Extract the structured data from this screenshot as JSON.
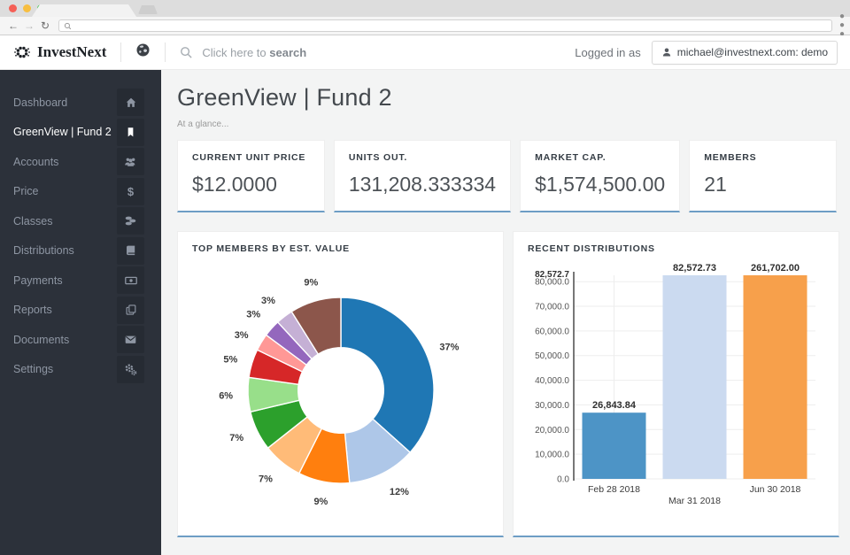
{
  "browser": {
    "traffic_lights": [
      "#f55f56",
      "#f7be40",
      "#3bc24a"
    ],
    "url_text": ""
  },
  "header": {
    "brand": "InvestNext",
    "search": {
      "prefix": "Click here to ",
      "bold": "search"
    },
    "logged_in_label": "Logged in as",
    "user": "michael@investnext.com: demo"
  },
  "sidebar": {
    "items": [
      {
        "label": "Dashboard",
        "icon": "home-icon",
        "active": false
      },
      {
        "label": "GreenView | Fund 2",
        "icon": "bookmark-icon",
        "active": true
      },
      {
        "label": "Accounts",
        "icon": "users-icon",
        "active": false
      },
      {
        "label": "Price",
        "icon": "dollar-icon",
        "active": false
      },
      {
        "label": "Classes",
        "icon": "coins-icon",
        "active": false
      },
      {
        "label": "Distributions",
        "icon": "book-icon",
        "active": false
      },
      {
        "label": "Payments",
        "icon": "banknote-icon",
        "active": false
      },
      {
        "label": "Reports",
        "icon": "copy-icon",
        "active": false
      },
      {
        "label": "Documents",
        "icon": "envelope-icon",
        "active": false
      },
      {
        "label": "Settings",
        "icon": "gears-icon",
        "active": false
      }
    ]
  },
  "page": {
    "title": "GreenView | Fund 2",
    "subtitle": "At a glance..."
  },
  "stats": {
    "cards": [
      {
        "label": "CURRENT UNIT PRICE",
        "value": "$12.0000"
      },
      {
        "label": "UNITS OUT.",
        "value": "131,208.333334"
      },
      {
        "label": "MARKET CAP.",
        "value": "$1,574,500.00"
      },
      {
        "label": "MEMBERS",
        "value": "21"
      }
    ]
  },
  "colors": {
    "accent": "#6d9dc5",
    "sidebar_bg": "#2c313a",
    "active_text": "#ffffff"
  },
  "chart_data": [
    {
      "type": "pie",
      "title": "TOP MEMBERS BY EST. VALUE",
      "hole": 0.46,
      "start_angle": "top-clockwise",
      "slices": [
        {
          "label": "37%",
          "value": 37,
          "color": "#1f77b4"
        },
        {
          "label": "12%",
          "value": 12,
          "color": "#aec7e8"
        },
        {
          "label": "9%",
          "value": 9,
          "color": "#ff7f0e"
        },
        {
          "label": "7%",
          "value": 7,
          "color": "#ffbb78"
        },
        {
          "label": "7%",
          "value": 7,
          "color": "#2ca02c"
        },
        {
          "label": "6%",
          "value": 6,
          "color": "#98df8a"
        },
        {
          "label": "5%",
          "value": 5,
          "color": "#d62728"
        },
        {
          "label": "3%",
          "value": 3,
          "color": "#ff9896"
        },
        {
          "label": "3%",
          "value": 3,
          "color": "#9467bd"
        },
        {
          "label": "3%",
          "value": 3,
          "color": "#c5b0d5"
        },
        {
          "label": "9%",
          "value": 9,
          "color": "#8c564b"
        }
      ]
    },
    {
      "type": "bar",
      "title": "RECENT DISTRIBUTIONS",
      "categories": [
        "Feb 28 2018",
        "Mar 31 2018",
        "Jun 30 2018"
      ],
      "values": [
        26843.84,
        82572.73,
        261702.0
      ],
      "value_labels": [
        "26,843.84",
        "82,572.73",
        "261,702.00"
      ],
      "bar_colors": [
        "#4d94c6",
        "#cbdaf0",
        "#f7a04b"
      ],
      "ylim": [
        0,
        82572.7
      ],
      "ymax_label": "82,572.7",
      "ytick_values": [
        0,
        10000,
        20000,
        30000,
        40000,
        50000,
        60000,
        70000,
        80000
      ],
      "ytick_labels": [
        "0.0",
        "10,000.0",
        "20,000.0",
        "30,000.0",
        "40,000.0",
        "50,000.0",
        "60,000.0",
        "70,000.0",
        "80,000.0"
      ],
      "grid": true,
      "legend": "none"
    }
  ]
}
